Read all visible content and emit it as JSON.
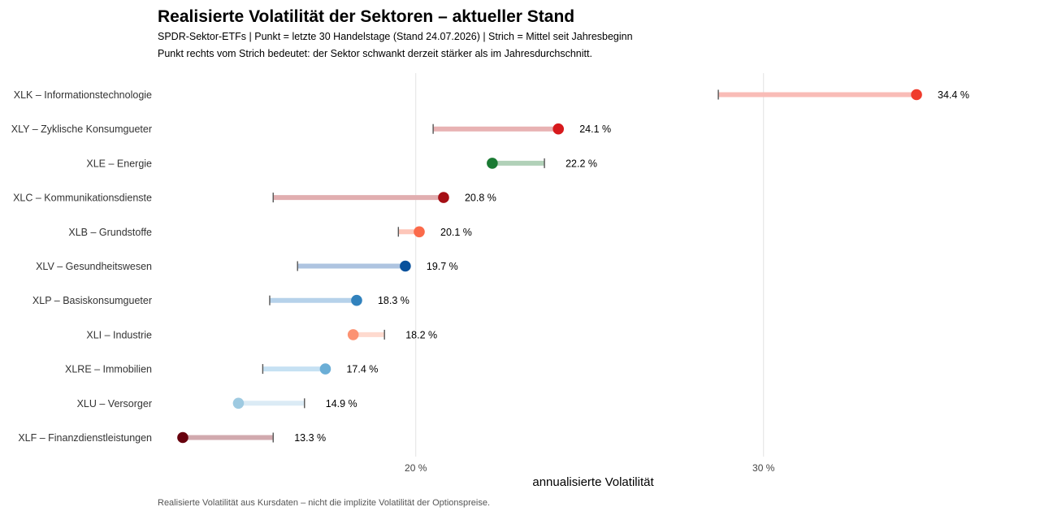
{
  "chart_data": {
    "type": "dot-range",
    "title": "Realisierte Volatilität der Sektoren – aktueller Stand",
    "subtitle": "SPDR-Sektor-ETFs | Punkt = letzte 30 Handelstage (Stand 24.07.2026) | Strich = Mittel seit Jahresbeginn",
    "note": "Punkt rechts vom Strich bedeutet: der Sektor schwankt derzeit stärker als im Jahresdurchschnitt.",
    "caption": "Realisierte Volatilität aus Kursdaten – nicht die implizite Volatilität der Optionspreise.",
    "xlabel": "annualisierte Volatilität",
    "x_ticks": [
      {
        "value": 20,
        "label": "20 %"
      },
      {
        "value": 30,
        "label": "30 %"
      }
    ],
    "grid": "vertical",
    "xlim": [
      12.6,
      37.6
    ],
    "series": [
      {
        "name": "Punkt = letzte 30 Handelstage",
        "role": "current"
      },
      {
        "name": "Strich = Mittel seit Jahresbeginn",
        "role": "ytd_mean"
      }
    ],
    "rows": [
      {
        "label": "XLK – Informationstechnologie",
        "current": 34.4,
        "ytd_mean": 28.7,
        "value_label": "34.4 %",
        "color": "#ef3b2c",
        "line_color": "#f9bcb7"
      },
      {
        "label": "XLY – Zyklische Konsumgueter",
        "current": 24.1,
        "ytd_mean": 20.5,
        "value_label": "24.1 %",
        "color": "#d7191c",
        "line_color": "#e8b2b3"
      },
      {
        "label": "XLE – Energie",
        "current": 22.2,
        "ytd_mean": 23.7,
        "value_label": "22.2 %",
        "color": "#1a7a33",
        "line_color": "#b1d1b8"
      },
      {
        "label": "XLC – Kommunikationsdienste",
        "current": 20.8,
        "ytd_mean": 15.9,
        "value_label": "20.8 %",
        "color": "#a50f15",
        "line_color": "#e1aeb0"
      },
      {
        "label": "XLB – Grundstoffe",
        "current": 20.1,
        "ytd_mean": 19.5,
        "value_label": "20.1 %",
        "color": "#fb6a4a",
        "line_color": "#fdc6b9"
      },
      {
        "label": "XLV – Gesundheitswesen",
        "current": 19.7,
        "ytd_mean": 16.6,
        "value_label": "19.7 %",
        "color": "#08519c",
        "line_color": "#aec4e0"
      },
      {
        "label": "XLP – Basiskonsumgueter",
        "current": 18.3,
        "ytd_mean": 15.8,
        "value_label": "18.3 %",
        "color": "#3182bd",
        "line_color": "#b6d2ea"
      },
      {
        "label": "XLI – Industrie",
        "current": 18.2,
        "ytd_mean": 19.1,
        "value_label": "18.2 %",
        "color": "#fc9272",
        "line_color": "#fedacf"
      },
      {
        "label": "XLRE – Immobilien",
        "current": 17.4,
        "ytd_mean": 15.6,
        "value_label": "17.4 %",
        "color": "#6baed6",
        "line_color": "#c6e1f3"
      },
      {
        "label": "XLU – Versorger",
        "current": 14.9,
        "ytd_mean": 16.8,
        "value_label": "14.9 %",
        "color": "#9ecae1",
        "line_color": "#dbebf5"
      },
      {
        "label": "XLF – Finanzdienstleistungen",
        "current": 13.3,
        "ytd_mean": 15.9,
        "value_label": "13.3 %",
        "color": "#67000d",
        "line_color": "#d1a9ae"
      }
    ]
  }
}
